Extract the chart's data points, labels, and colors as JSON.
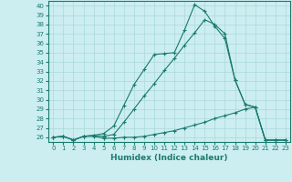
{
  "title": "",
  "xlabel": "Humidex (Indice chaleur)",
  "ylabel": "",
  "bg_color": "#cceef0",
  "line_color": "#1a7a6e",
  "grid_color": "#aad8dc",
  "x_ticks": [
    0,
    1,
    2,
    3,
    4,
    5,
    6,
    7,
    8,
    9,
    10,
    11,
    12,
    13,
    14,
    15,
    16,
    17,
    18,
    19,
    20,
    21,
    22,
    23
  ],
  "y_ticks": [
    26,
    27,
    28,
    29,
    30,
    31,
    32,
    33,
    34,
    35,
    36,
    37,
    38,
    39,
    40
  ],
  "ylim": [
    25.5,
    40.5
  ],
  "xlim": [
    -0.5,
    23.5
  ],
  "series": [
    [
      26.0,
      26.1,
      25.7,
      26.1,
      26.1,
      25.9,
      25.9,
      26.0,
      26.0,
      26.1,
      26.3,
      26.5,
      26.7,
      27.0,
      27.3,
      27.6,
      28.0,
      28.3,
      28.6,
      29.0,
      29.2,
      25.7,
      25.7,
      25.7
    ],
    [
      26.0,
      26.1,
      25.7,
      26.1,
      26.2,
      26.1,
      26.3,
      27.6,
      29.0,
      30.4,
      31.7,
      33.1,
      34.4,
      35.8,
      37.1,
      38.5,
      38.0,
      37.0,
      32.1,
      29.5,
      29.2,
      25.7,
      25.7,
      25.7
    ],
    [
      26.0,
      26.1,
      25.7,
      26.1,
      26.2,
      26.4,
      27.2,
      29.4,
      31.6,
      33.2,
      34.8,
      34.9,
      35.0,
      37.4,
      40.1,
      39.4,
      37.8,
      36.5,
      32.1,
      29.5,
      29.2,
      25.7,
      25.7,
      25.7
    ]
  ],
  "tick_fontsize": 5.0,
  "xlabel_fontsize": 6.5,
  "linewidth": 0.8,
  "markersize": 3.0,
  "markeredgewidth": 0.8
}
